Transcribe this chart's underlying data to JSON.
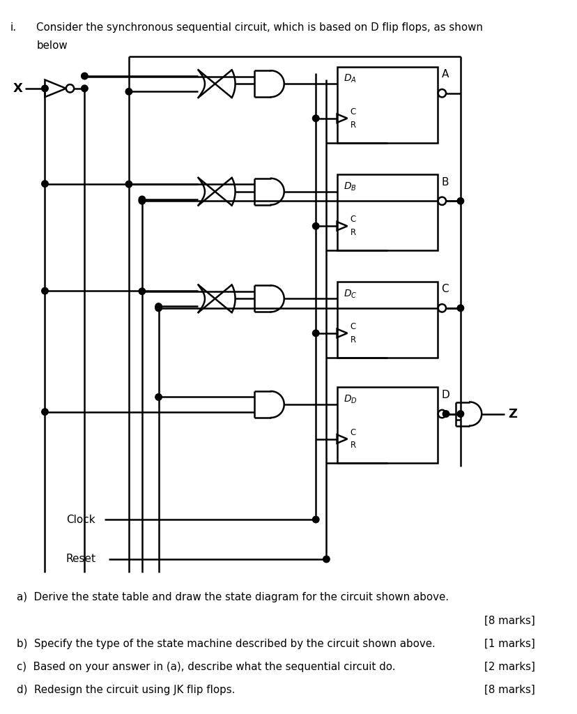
{
  "header_i": "i.",
  "header_text": "Consider the synchronous sequential circuit, which is based on D flip flops, as shown",
  "header_below": "below",
  "ff_labels": [
    "A",
    "B",
    "C",
    "D"
  ],
  "qa": "a)  Derive the state table and draw the state diagram for the circuit shown above.",
  "qb": "b)  Specify the type of the state machine described by the circuit shown above.",
  "qc": "c)  Based on your answer in (a), describe what the sequential circuit do.",
  "qd": "d)  Redesign the circuit using JK flip flops.",
  "marks_a": "[8 marks]",
  "marks_b": "[1 marks]",
  "marks_c": "[2 marks]",
  "marks_d": "[8 marks]",
  "bg": "#ffffff",
  "fg": "#000000"
}
